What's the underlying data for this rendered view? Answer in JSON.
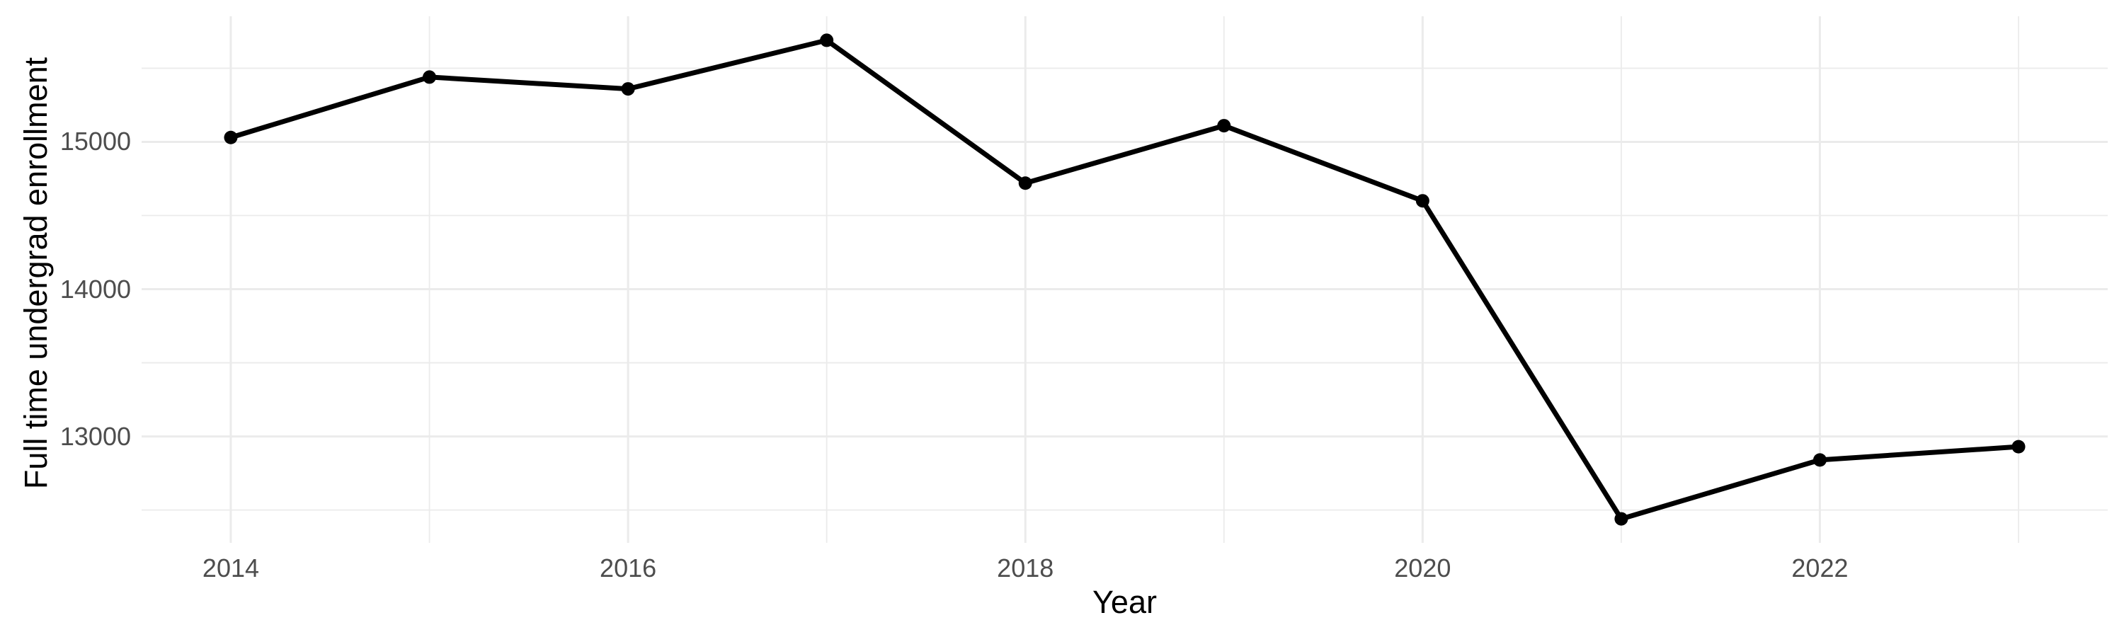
{
  "chart_data": {
    "type": "line",
    "title": "",
    "xlabel": "Year",
    "ylabel": "Full time undergrad enrollment",
    "x": [
      2014,
      2015,
      2016,
      2017,
      2018,
      2019,
      2020,
      2021,
      2022,
      2023
    ],
    "values": [
      15030,
      15440,
      15360,
      15690,
      14720,
      15110,
      14600,
      12440,
      12840,
      12930
    ],
    "xlim": [
      2013.551,
      2023.449
    ],
    "ylim": [
      12277,
      15853
    ],
    "x_major_ticks": [
      {
        "value": 2014,
        "label": "2014"
      },
      {
        "value": 2016,
        "label": "2016"
      },
      {
        "value": 2018,
        "label": "2018"
      },
      {
        "value": 2020,
        "label": "2020"
      },
      {
        "value": 2022,
        "label": "2022"
      }
    ],
    "x_minor_ticks": [
      2015,
      2017,
      2019,
      2021,
      2023
    ],
    "y_major_ticks": [
      {
        "value": 13000,
        "label": "13000"
      },
      {
        "value": 14000,
        "label": "14000"
      },
      {
        "value": 15000,
        "label": "15000"
      }
    ],
    "y_minor_ticks": [
      12500,
      13500,
      14500,
      15500
    ],
    "grid": true,
    "legend_position": "none",
    "colors": {
      "line": "#000000",
      "point": "#000000",
      "grid_major": "#EBEBEB",
      "grid_minor": "#EBEBEB",
      "tick_label": "#4D4D4D",
      "axis_title": "#000000",
      "background": "#FFFFFF"
    }
  }
}
